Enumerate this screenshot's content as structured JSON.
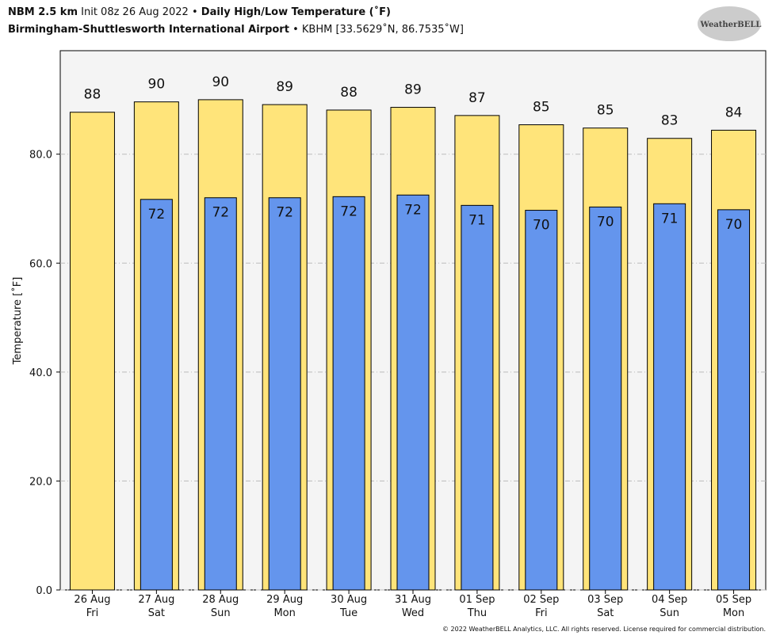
{
  "chart_data": {
    "type": "bar",
    "title_parts": [
      "NBM 2.5 km",
      "Init 08z 26 Aug 2022 •",
      "Daily High/Low Temperature (˚F)"
    ],
    "subtitle_parts": [
      "Birmingham-Shuttlesworth International Airport",
      "• KBHM [33.5629˚N, 86.7535˚W]"
    ],
    "logo": "WeatherBELL",
    "footer": "© 2022 WeatherBELL Analytics, LLC. All rights reserved. License required for commercial distribution.",
    "y_label": "Temperature [˚F]",
    "categories": [
      "26 Aug",
      "27 Aug",
      "28 Aug",
      "29 Aug",
      "30 Aug",
      "31 Aug",
      "01 Sep",
      "02 Sep",
      "03 Sep",
      "04 Sep",
      "05 Sep"
    ],
    "category_sublabels": [
      "Fri",
      "Sat",
      "Sun",
      "Mon",
      "Tue",
      "Wed",
      "Thu",
      "Fri",
      "Sat",
      "Sun",
      "Mon"
    ],
    "series": [
      {
        "name": "High",
        "color": "#ffe47a",
        "values": [
          87.7,
          89.6,
          90.0,
          89.1,
          88.1,
          88.6,
          87.1,
          85.4,
          84.8,
          82.9,
          84.4
        ],
        "value_labels": [
          "88",
          "90",
          "90",
          "89",
          "88",
          "89",
          "87",
          "85",
          "85",
          "83",
          "84"
        ]
      },
      {
        "name": "Low",
        "color": "#6495ed",
        "values": [
          null,
          71.7,
          72.0,
          72.0,
          72.2,
          72.5,
          70.6,
          69.7,
          70.3,
          70.9,
          69.8
        ],
        "value_labels": [
          null,
          "72",
          "72",
          "72",
          "72",
          "72",
          "71",
          "70",
          "70",
          "71",
          "70"
        ]
      }
    ],
    "ylim": [
      0,
      99
    ],
    "yticks": [
      {
        "value": 0,
        "label": "0.0"
      },
      {
        "value": 20,
        "label": "20.0"
      },
      {
        "value": 40,
        "label": "40.0"
      },
      {
        "value": 60,
        "label": "60.0"
      },
      {
        "value": 80,
        "label": "80.0"
      }
    ],
    "grid": true
  }
}
